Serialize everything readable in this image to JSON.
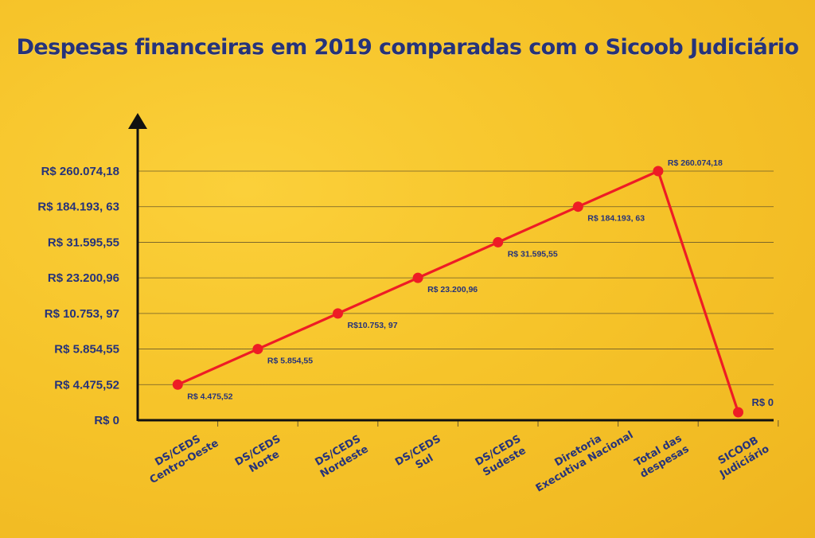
{
  "title": "Despesas financeiras em 2019 comparadas com o Sicoob Judiciário",
  "colors": {
    "background": "#f6c42a",
    "text": "#26337a",
    "line": "#ee1c25",
    "axis": "#111111",
    "grid": "#6b5a2a"
  },
  "chart_data": {
    "type": "line",
    "title": "Despesas financeiras em 2019 comparadas com o Sicoob Judiciário",
    "xlabel": "",
    "ylabel": "",
    "y_scale": "categorical (ticks evenly spaced, not proportional)",
    "grid": true,
    "y_ticks": [
      "R$ 0",
      "R$ 4.475,52",
      "R$ 5.854,55",
      "R$ 10.753, 97",
      "R$ 23.200,96",
      "R$ 31.595,55",
      "R$ 184.193, 63",
      "R$ 260.074,18"
    ],
    "categories": [
      [
        "DS/CEDS",
        "Centro-Oeste"
      ],
      [
        "DS/CEDS",
        "Norte"
      ],
      [
        "DS/CEDS",
        "Nordeste"
      ],
      [
        "DS/CEDS",
        "Sul"
      ],
      [
        "DS/CEDS",
        "Sudeste"
      ],
      [
        "Diretoria",
        "Executiva Nacional"
      ],
      [
        "Total das",
        "despesas"
      ],
      [
        "SICOOB",
        "Judiciário"
      ]
    ],
    "values": [
      4475.52,
      5854.55,
      10753.97,
      23200.96,
      31595.55,
      184193.63,
      260074.18,
      0
    ],
    "point_tick_index": [
      1,
      2,
      3,
      4,
      5,
      6,
      7,
      0
    ],
    "data_labels": [
      "R$ 4.475,52",
      "R$ 5.854,55",
      "R$10.753, 97",
      "R$ 23.200,96",
      "R$ 31.595,55",
      "R$ 184.193, 63",
      "R$ 260.074,18",
      "R$ 0"
    ]
  }
}
